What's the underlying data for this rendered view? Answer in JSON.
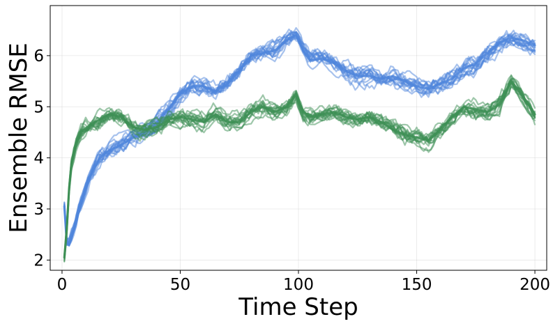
{
  "chart_data": {
    "type": "line",
    "title": "",
    "xlabel": "Time Step",
    "ylabel": "Ensemble RMSE",
    "xlim": [
      -5,
      205
    ],
    "ylim": [
      1.8,
      6.98
    ],
    "xticks": [
      0,
      50,
      100,
      150,
      200
    ],
    "yticks": [
      2,
      3,
      4,
      5,
      6
    ],
    "grid": true,
    "legend": "none",
    "ensemble_members_per_series": 15,
    "series": [
      {
        "color": "#4f86dc",
        "x": [
          1,
          2,
          3,
          5,
          7,
          10,
          13,
          16,
          20,
          25,
          30,
          35,
          40,
          45,
          50,
          55,
          60,
          65,
          70,
          75,
          80,
          85,
          90,
          95,
          99,
          102,
          105,
          110,
          115,
          120,
          125,
          130,
          135,
          140,
          145,
          150,
          155,
          160,
          165,
          170,
          175,
          180,
          185,
          190,
          195,
          200
        ],
        "values": [
          3.05,
          2.35,
          2.3,
          2.6,
          2.95,
          3.4,
          3.75,
          4.0,
          4.15,
          4.25,
          4.4,
          4.5,
          4.7,
          4.95,
          5.25,
          5.4,
          5.4,
          5.3,
          5.45,
          5.7,
          6.0,
          6.05,
          6.1,
          6.3,
          6.4,
          6.1,
          5.9,
          5.95,
          5.85,
          5.7,
          5.6,
          5.6,
          5.55,
          5.6,
          5.5,
          5.4,
          5.35,
          5.45,
          5.55,
          5.75,
          5.85,
          6.05,
          6.25,
          6.35,
          6.3,
          6.2
        ]
      },
      {
        "color": "#3d8f55",
        "x": [
          1,
          2,
          3,
          4,
          6,
          8,
          12,
          16,
          20,
          25,
          30,
          35,
          40,
          45,
          50,
          55,
          60,
          65,
          70,
          75,
          80,
          85,
          90,
          95,
          99,
          102,
          105,
          110,
          115,
          120,
          125,
          130,
          135,
          140,
          145,
          150,
          155,
          160,
          165,
          170,
          175,
          180,
          185,
          190,
          195,
          200
        ],
        "values": [
          2.05,
          2.6,
          3.4,
          3.9,
          4.3,
          4.5,
          4.65,
          4.75,
          4.85,
          4.8,
          4.6,
          4.55,
          4.6,
          4.75,
          4.8,
          4.75,
          4.7,
          4.85,
          4.7,
          4.7,
          4.9,
          5.0,
          4.9,
          5.0,
          5.25,
          4.9,
          4.8,
          4.85,
          4.9,
          4.8,
          4.75,
          4.8,
          4.7,
          4.55,
          4.45,
          4.4,
          4.35,
          4.55,
          4.8,
          5.0,
          4.95,
          4.9,
          5.05,
          5.5,
          5.2,
          4.85
        ]
      }
    ]
  }
}
